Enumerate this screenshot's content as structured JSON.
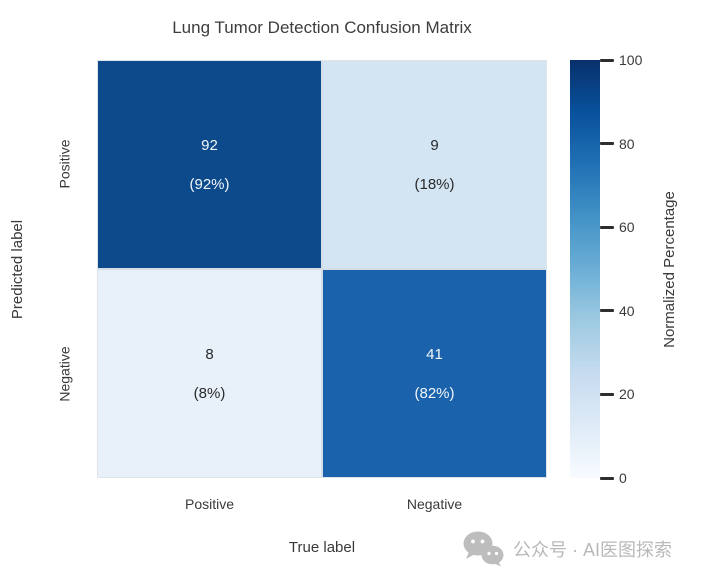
{
  "title": "Lung Tumor Detection Confusion Matrix",
  "axes": {
    "x_label": "True label",
    "y_label": "Predicted label",
    "x_ticks": [
      "Positive",
      "Negative"
    ],
    "y_ticks": [
      "Positive",
      "Negative"
    ]
  },
  "cells": [
    {
      "name": "true-positive",
      "value": "92",
      "percent": "(92%)",
      "bg": "#0c4a8c",
      "text_color": "#f2f6fa"
    },
    {
      "name": "false-positive",
      "value": "9",
      "percent": "(18%)",
      "bg": "#d3e4f3",
      "text_color": "#2a2a2a"
    },
    {
      "name": "false-negative",
      "value": "8",
      "percent": "(8%)",
      "bg": "#e8f1fa",
      "text_color": "#2a2a2a"
    },
    {
      "name": "true-negative",
      "value": "41",
      "percent": "(82%)",
      "bg": "#1a63ac",
      "text_color": "#f2f6fa"
    }
  ],
  "colorbar": {
    "label": "Normalized Percentage",
    "ticks": [
      "100",
      "80",
      "60",
      "40",
      "20",
      "0"
    ],
    "gradient_stops_bottom_to_top": [
      "#f7fbff",
      "#deebf7",
      "#c6dbef",
      "#9ecae1",
      "#6baed6",
      "#4292c6",
      "#2171b5",
      "#08519c",
      "#08306b"
    ]
  },
  "watermark": {
    "icon": "wechat-icon",
    "text": "公众号 · AI医图探索",
    "color": "#b9b9b9"
  },
  "chart_data": {
    "type": "heatmap",
    "title": "Lung Tumor Detection Confusion Matrix",
    "xlabel": "True label",
    "ylabel": "Predicted label",
    "x_categories": [
      "Positive",
      "Negative"
    ],
    "y_categories": [
      "Positive",
      "Negative"
    ],
    "counts": [
      [
        92,
        9
      ],
      [
        8,
        41
      ]
    ],
    "normalized_percent": [
      [
        92,
        18
      ],
      [
        8,
        82
      ]
    ],
    "colormap": "Blues",
    "colorbar_label": "Normalized Percentage",
    "colorbar_ticks": [
      0,
      20,
      40,
      60,
      80,
      100
    ],
    "colorbar_range": [
      0,
      100
    ],
    "grid": false,
    "legend": "colorbar-right"
  }
}
